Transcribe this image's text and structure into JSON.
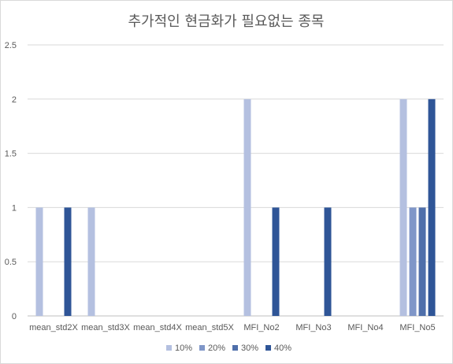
{
  "chart_data": {
    "type": "bar",
    "title": "추가적인 현금화가 필요없는 종목",
    "categories": [
      "mean_std2X",
      "mean_std3X",
      "mean_std4X",
      "mean_std5X",
      "MFI_No2",
      "MFI_No3",
      "MFI_No4",
      "MFI_No5"
    ],
    "series": [
      {
        "name": "10%",
        "color": "#b4c0e0",
        "values": [
          1,
          1,
          0,
          0,
          2,
          0,
          0,
          2
        ]
      },
      {
        "name": "20%",
        "color": "#7f96c8",
        "values": [
          0,
          0,
          0,
          0,
          0,
          0,
          0,
          1
        ]
      },
      {
        "name": "30%",
        "color": "#4f6faa",
        "values": [
          0,
          0,
          0,
          0,
          0,
          0,
          0,
          1
        ]
      },
      {
        "name": "40%",
        "color": "#2f5597",
        "values": [
          1,
          0,
          0,
          0,
          1,
          1,
          0,
          2
        ]
      }
    ],
    "y_ticks": [
      "0",
      "0.5",
      "1",
      "1.5",
      "2",
      "2.5"
    ],
    "ylim": [
      0,
      2.5
    ],
    "grid": true,
    "legend_position": "bottom"
  }
}
